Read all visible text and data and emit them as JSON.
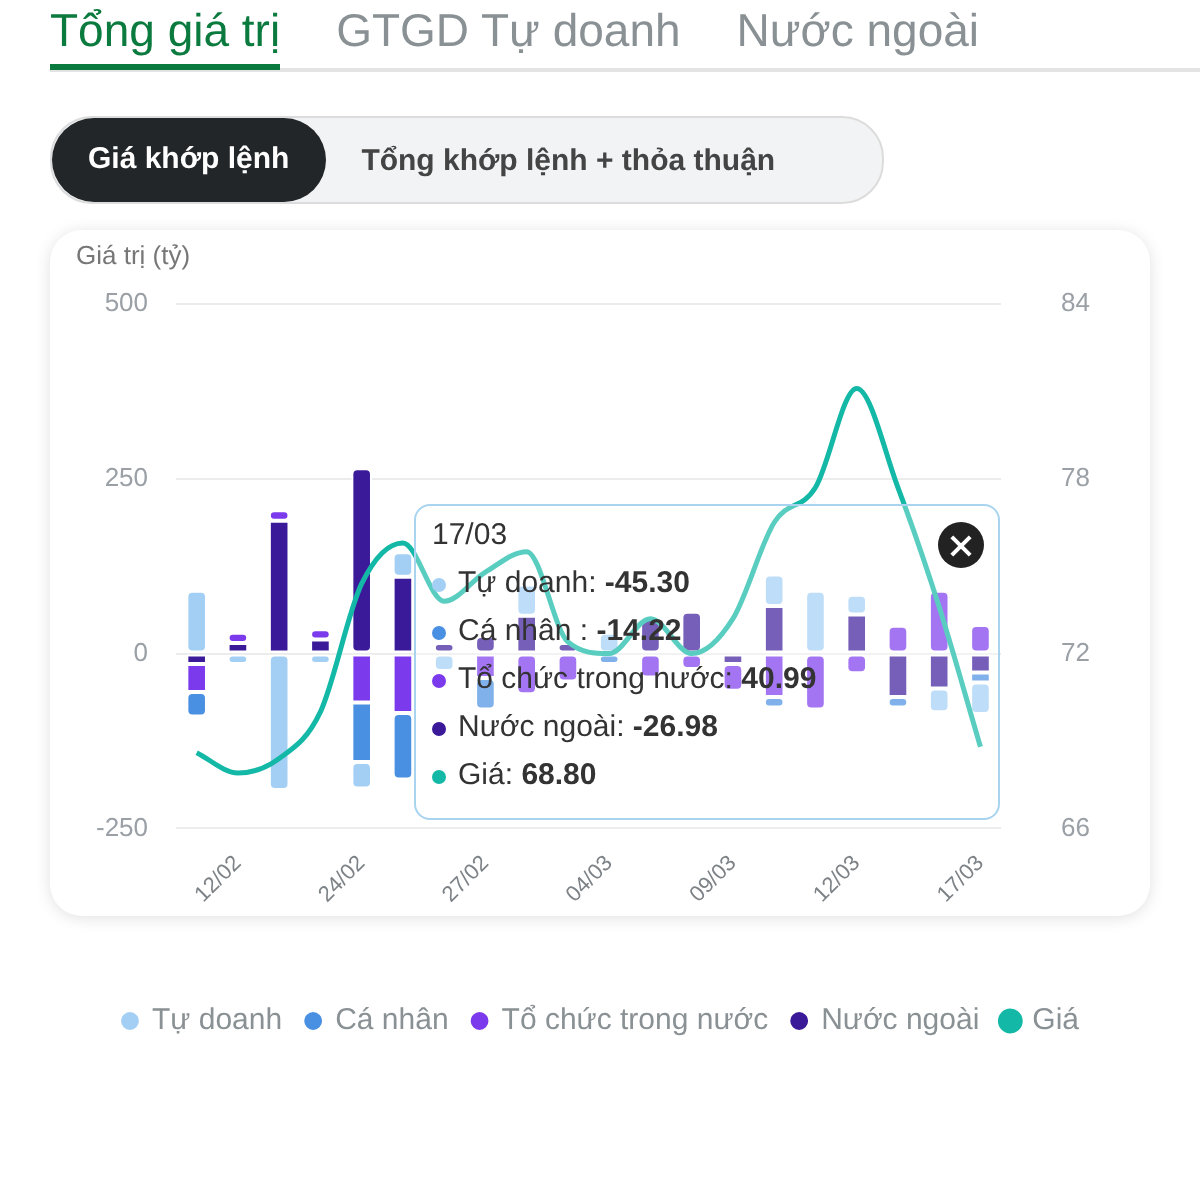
{
  "chart_data": {
    "type": "bar",
    "stacked": true,
    "ylabel": "Giá trị (tỷ)",
    "categories": [
      null,
      "12/02",
      null,
      null,
      "24/02",
      null,
      null,
      "27/02",
      null,
      null,
      "04/03",
      null,
      null,
      "09/03",
      null,
      null,
      "12/03",
      null,
      null,
      "17/03"
    ],
    "series": [
      {
        "name": "Nước ngoài",
        "color": "#3b1a9a",
        "values": [
          -15,
          15,
          190,
          20,
          265,
          110,
          15,
          25,
          54,
          15,
          null,
          50,
          60,
          -15,
          68,
          null,
          56,
          -62,
          -50,
          -26.98
        ]
      },
      {
        "name": "Tổ chức trong nước",
        "color": "#7c3aed",
        "values": [
          -40,
          15,
          15,
          15,
          -70,
          -85,
          null,
          -35,
          -58,
          -40,
          null,
          -34,
          -22,
          -38,
          -62,
          -80,
          -28,
          40,
          90,
          40.99
        ]
      },
      {
        "name": "Cá nhân",
        "color": "#4a90e2",
        "values": [
          -35,
          null,
          null,
          null,
          -85,
          -95,
          null,
          -45,
          null,
          null,
          -15,
          null,
          null,
          null,
          -15,
          null,
          null,
          -15,
          null,
          -14.22
        ]
      },
      {
        "name": "Tự doanh",
        "color": "#a3cff5",
        "values": [
          90,
          -15,
          -195,
          -15,
          -38,
          35,
          -25,
          null,
          45,
          null,
          30,
          null,
          null,
          null,
          45,
          90,
          28,
          null,
          -34,
          -45.3
        ]
      },
      {
        "name": "Giá",
        "type": "line",
        "axis": "y2",
        "color": "#14b8a6",
        "values": [
          68.6,
          67.9,
          68.4,
          70.0,
          74.4,
          75.8,
          73.8,
          74.8,
          75.5,
          72.4,
          72.0,
          73.2,
          72.0,
          73.2,
          76.5,
          77.7,
          81.1,
          77.7,
          73.6,
          68.8
        ]
      }
    ],
    "ylim": [
      -250,
      500
    ],
    "yticks": [
      -250,
      0,
      250,
      500
    ],
    "y2lim": [
      66,
      84
    ],
    "y2ticks": [
      66,
      72,
      78,
      84
    ],
    "grid": "y",
    "legend": "bottom",
    "marker": "none",
    "annotations": [
      "Tổng giá trị",
      "GTGD Tự doanh",
      "Nước ngoài",
      "Giá khớp lệnh",
      "Tổng khớp lệnh + thỏa thuận",
      "17/03",
      "Tự doanh: -45.30",
      "Cá nhân : -14.22",
      "Tổ chức trong nước: 40.99",
      "Nước ngoài: -26.98",
      "Giá: 68.80"
    ]
  }
}
